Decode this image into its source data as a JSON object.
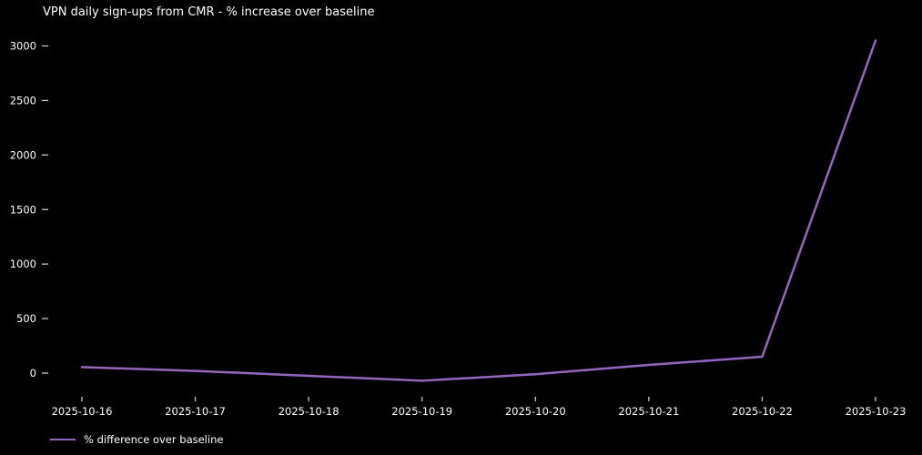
{
  "title": "VPN daily sign-ups from CMR - % increase over baseline",
  "chart_data": {
    "type": "line",
    "title": "VPN daily sign-ups from CMR - % increase over baseline",
    "x": [
      "2025-10-16",
      "2025-10-17",
      "2025-10-18",
      "2025-10-19",
      "2025-10-20",
      "2025-10-21",
      "2025-10-22",
      "2025-10-23"
    ],
    "series": [
      {
        "name": "% difference over baseline",
        "values": [
          55,
          20,
          -25,
          -70,
          -10,
          75,
          150,
          3050
        ],
        "color": "#9467bd"
      }
    ],
    "xlabel": "",
    "ylabel": "",
    "yticks": [
      0,
      500,
      1000,
      1500,
      2000,
      2500,
      3000
    ],
    "ylim": [
      -160,
      3100
    ],
    "grid": false,
    "legend_position": "lower-left",
    "background_color": "#000000",
    "text_color": "#ffffff",
    "tick_color": "#c8c8c8"
  },
  "legend": {
    "label": "% difference over baseline"
  }
}
